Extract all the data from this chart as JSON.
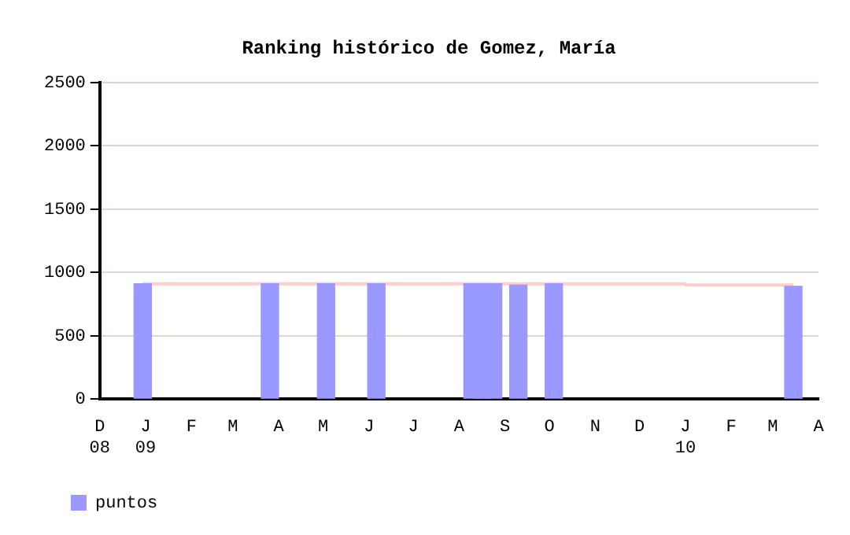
{
  "chart_data": {
    "type": "bar",
    "title": "Ranking histórico de Gomez, María",
    "xlim": [
      "2008-12-01",
      "2010-04-01"
    ],
    "xticks": [
      {
        "value": "2008-12-01",
        "label": "D\n08"
      },
      {
        "value": "2009-01-01",
        "label": "J\n09"
      },
      {
        "value": "2009-02-01",
        "label": "F"
      },
      {
        "value": "2009-03-01",
        "label": "M"
      },
      {
        "value": "2009-04-01",
        "label": "A"
      },
      {
        "value": "2009-05-01",
        "label": "M"
      },
      {
        "value": "2009-06-01",
        "label": "J"
      },
      {
        "value": "2009-07-01",
        "label": "J"
      },
      {
        "value": "2009-08-01",
        "label": "A"
      },
      {
        "value": "2009-09-01",
        "label": "S"
      },
      {
        "value": "2009-10-01",
        "label": "O"
      },
      {
        "value": "2009-11-01",
        "label": "N"
      },
      {
        "value": "2009-12-01",
        "label": "D"
      },
      {
        "value": "2010-01-01",
        "label": "J\n10"
      },
      {
        "value": "2010-02-01",
        "label": "F"
      },
      {
        "value": "2010-03-01",
        "label": "M"
      },
      {
        "value": "2010-04-01",
        "label": "A"
      }
    ],
    "ylim": [
      0,
      2500
    ],
    "yticks": [
      0,
      500,
      1000,
      1500,
      2000,
      2500
    ],
    "grid": "y",
    "legend": "bottom",
    "series": [
      {
        "name": "puntos",
        "color": "#9999ff",
        "x": [
          "2008-12-30",
          "2009-03-26",
          "2009-05-03",
          "2009-06-06",
          "2009-08-10",
          "2009-08-17",
          "2009-08-24",
          "2009-09-10",
          "2009-10-04",
          "2010-03-15"
        ],
        "values": [
          910,
          910,
          910,
          910,
          910,
          910,
          910,
          900,
          910,
          890
        ]
      },
      {
        "type": "line",
        "color": "#ffcccc",
        "x": [
          "2008-12-30",
          "2010-01-01",
          "2010-01-01",
          "2010-03-15"
        ],
        "values": [
          910,
          910,
          900,
          900
        ]
      }
    ]
  }
}
